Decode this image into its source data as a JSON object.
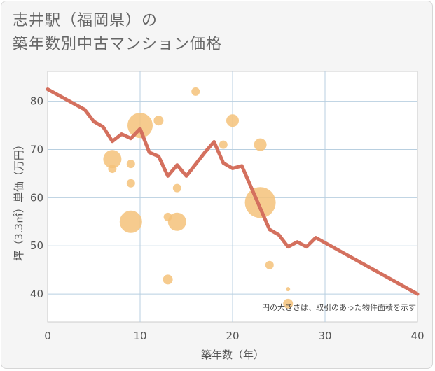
{
  "title_line1": "志井駅（福岡県）の",
  "title_line2": "築年数別中古マンション価格",
  "chart_data": {
    "type": "scatter",
    "xlabel": "築年数（年）",
    "ylabel": "坪（3.3㎡）単価（万円）",
    "xlim": [
      0,
      40
    ],
    "ylim": [
      34.2,
      86.2
    ],
    "xticks": [
      "0",
      "10",
      "20",
      "30",
      "40"
    ],
    "yticks": [
      "40",
      "50",
      "60",
      "70",
      "80"
    ],
    "xtick_values": [
      0,
      10,
      20,
      30,
      40
    ],
    "ytick_values": [
      40,
      50,
      60,
      70,
      80
    ],
    "grid": true,
    "note": "円の大きさは、取引のあった物件面積を示す",
    "bubble_color": "#f5c27a",
    "line_color": "#d4705e",
    "bubbles": [
      {
        "x": 7,
        "y": 68,
        "r": 13
      },
      {
        "x": 7,
        "y": 66,
        "r": 6
      },
      {
        "x": 9,
        "y": 67,
        "r": 6
      },
      {
        "x": 9,
        "y": 63,
        "r": 6
      },
      {
        "x": 9,
        "y": 55,
        "r": 16
      },
      {
        "x": 10,
        "y": 75,
        "r": 18
      },
      {
        "x": 12,
        "y": 76,
        "r": 7
      },
      {
        "x": 13,
        "y": 56,
        "r": 6
      },
      {
        "x": 13,
        "y": 43,
        "r": 7
      },
      {
        "x": 14,
        "y": 62,
        "r": 6
      },
      {
        "x": 14,
        "y": 55,
        "r": 13
      },
      {
        "x": 16,
        "y": 82,
        "r": 6
      },
      {
        "x": 19,
        "y": 71,
        "r": 6
      },
      {
        "x": 20,
        "y": 76,
        "r": 9
      },
      {
        "x": 23,
        "y": 71,
        "r": 9
      },
      {
        "x": 23,
        "y": 59,
        "r": 22
      },
      {
        "x": 24,
        "y": 46,
        "r": 6
      },
      {
        "x": 26,
        "y": 41,
        "r": 3
      },
      {
        "x": 26,
        "y": 38,
        "r": 7
      }
    ],
    "line": [
      {
        "x": 0,
        "y": 82.5
      },
      {
        "x": 4,
        "y": 78.3
      },
      {
        "x": 5,
        "y": 75.8
      },
      {
        "x": 6,
        "y": 74.7
      },
      {
        "x": 7,
        "y": 71.7
      },
      {
        "x": 8,
        "y": 73.2
      },
      {
        "x": 9,
        "y": 72.3
      },
      {
        "x": 10,
        "y": 74.3
      },
      {
        "x": 11,
        "y": 69.4
      },
      {
        "x": 12,
        "y": 68.6
      },
      {
        "x": 13,
        "y": 64.5
      },
      {
        "x": 14,
        "y": 66.8
      },
      {
        "x": 15,
        "y": 64.5
      },
      {
        "x": 17,
        "y": 69.4
      },
      {
        "x": 18,
        "y": 71.6
      },
      {
        "x": 19,
        "y": 67.2
      },
      {
        "x": 20,
        "y": 66.1
      },
      {
        "x": 21,
        "y": 66.6
      },
      {
        "x": 24,
        "y": 53.4
      },
      {
        "x": 25,
        "y": 52.3
      },
      {
        "x": 26,
        "y": 49.8
      },
      {
        "x": 27,
        "y": 50.8
      },
      {
        "x": 28,
        "y": 49.8
      },
      {
        "x": 29,
        "y": 51.7
      },
      {
        "x": 40,
        "y": 40.0
      }
    ]
  }
}
